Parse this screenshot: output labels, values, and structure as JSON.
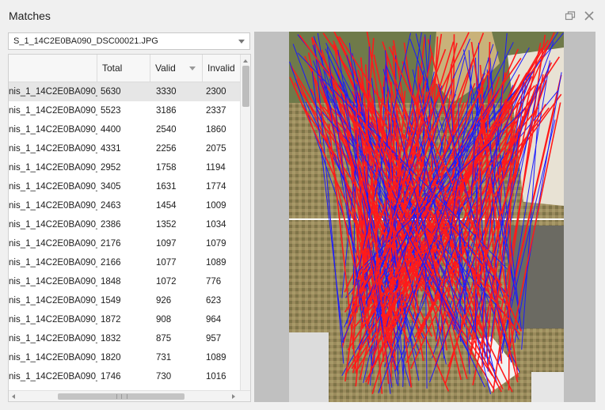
{
  "panel": {
    "title": "Matches"
  },
  "image_selector": {
    "selected": "S_1_14C2E0BA090_DSC00021.JPG"
  },
  "table": {
    "columns": [
      "",
      "Total",
      "Valid",
      "Invalid"
    ],
    "rows": [
      {
        "name": "nis_1_14C2E0BA090_",
        "total": "5630",
        "valid": "3330",
        "invalid": "2300",
        "selected": true
      },
      {
        "name": "nis_1_14C2E0BA090_",
        "total": "5523",
        "valid": "3186",
        "invalid": "2337"
      },
      {
        "name": "nis_1_14C2E0BA090_",
        "total": "4400",
        "valid": "2540",
        "invalid": "1860"
      },
      {
        "name": "nis_1_14C2E0BA090_",
        "total": "4331",
        "valid": "2256",
        "invalid": "2075"
      },
      {
        "name": "nis_1_14C2E0BA090_",
        "total": "2952",
        "valid": "1758",
        "invalid": "1194"
      },
      {
        "name": "nis_1_14C2E0BA090_",
        "total": "3405",
        "valid": "1631",
        "invalid": "1774"
      },
      {
        "name": "nis_1_14C2E0BA090_",
        "total": "2463",
        "valid": "1454",
        "invalid": "1009"
      },
      {
        "name": "nis_1_14C2E0BA090_",
        "total": "2386",
        "valid": "1352",
        "invalid": "1034"
      },
      {
        "name": "nis_1_14C2E0BA090_",
        "total": "2176",
        "valid": "1097",
        "invalid": "1079"
      },
      {
        "name": "nis_1_14C2E0BA090_",
        "total": "2166",
        "valid": "1077",
        "invalid": "1089"
      },
      {
        "name": "nis_1_14C2E0BA090_",
        "total": "1848",
        "valid": "1072",
        "invalid": "776"
      },
      {
        "name": "nis_1_14C2E0BA090_",
        "total": "1549",
        "valid": "926",
        "invalid": "623"
      },
      {
        "name": "nis_1_14C2E0BA090_",
        "total": "1872",
        "valid": "908",
        "invalid": "964"
      },
      {
        "name": "nis_1_14C2E0BA090_",
        "total": "1832",
        "valid": "875",
        "invalid": "957"
      },
      {
        "name": "nis_1_14C2E0BA090_",
        "total": "1820",
        "valid": "731",
        "invalid": "1089"
      },
      {
        "name": "nis_1_14C2E0BA090_",
        "total": "1746",
        "valid": "730",
        "invalid": "1016"
      }
    ]
  },
  "icons": {
    "restore": "restore-window-icon",
    "close": "close-icon",
    "dropdown": "chevron-down-icon",
    "sort": "sort-down-icon"
  },
  "colors": {
    "valid_match": "#ff1a1a",
    "invalid_match": "#1a1aff",
    "selected_row": "#e6e6e6"
  }
}
